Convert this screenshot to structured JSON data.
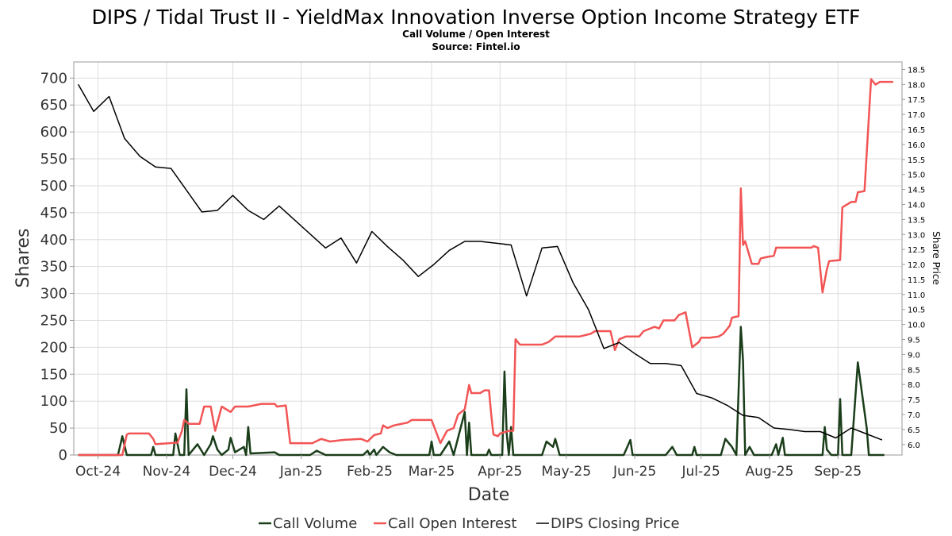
{
  "chart_data": {
    "type": "line",
    "title": "DIPS / Tidal Trust II - YieldMax Innovation Inverse Option Income Strategy ETF",
    "subtitle_lines": [
      "Call Volume / Open Interest",
      "Source: Fintel.io"
    ],
    "xlabel": "Date",
    "ylabel": "Shares",
    "y2label": "Share Price",
    "ylim": [
      0,
      730
    ],
    "y2lim": [
      5.65,
      18.75
    ],
    "y_ticks": [
      "0",
      "50",
      "100",
      "150",
      "200",
      "250",
      "300",
      "350",
      "400",
      "450",
      "500",
      "550",
      "600",
      "650",
      "700"
    ],
    "y2_ticks": [
      "6.0",
      "6.5",
      "7.0",
      "7.5",
      "8.0",
      "8.5",
      "9.0",
      "9.5",
      "10.0",
      "10.5",
      "11.0",
      "11.5",
      "12.0",
      "12.5",
      "13.0",
      "13.5",
      "14.0",
      "14.5",
      "15.0",
      "15.5",
      "16.0",
      "16.5",
      "17.0",
      "17.5",
      "18.0",
      "18.5"
    ],
    "x_range": [
      "2024-09-20",
      "2025-09-30"
    ],
    "x_ticks": [
      {
        "date": "2024-10-01",
        "label": "Oct-24"
      },
      {
        "date": "2024-11-01",
        "label": "Nov-24"
      },
      {
        "date": "2024-12-01",
        "label": "Dec-24"
      },
      {
        "date": "2025-01-01",
        "label": "Jan-25"
      },
      {
        "date": "2025-02-01",
        "label": "Feb-25"
      },
      {
        "date": "2025-03-01",
        "label": "Mar-25"
      },
      {
        "date": "2025-04-01",
        "label": "Apr-25"
      },
      {
        "date": "2025-05-01",
        "label": "May-25"
      },
      {
        "date": "2025-06-01",
        "label": "Jun-25"
      },
      {
        "date": "2025-07-01",
        "label": "Jul-25"
      },
      {
        "date": "2025-08-01",
        "label": "Aug-25"
      },
      {
        "date": "2025-09-01",
        "label": "Sep-25"
      }
    ],
    "grid": true,
    "legend_position": "bottom",
    "series": [
      {
        "name": "Call Volume",
        "axis": "left",
        "color": "#1a3d1a",
        "points": [
          [
            "2024-09-22",
            0
          ],
          [
            "2024-10-01",
            0
          ],
          [
            "2024-10-10",
            0
          ],
          [
            "2024-10-12",
            35
          ],
          [
            "2024-10-14",
            0
          ],
          [
            "2024-10-25",
            0
          ],
          [
            "2024-10-26",
            15
          ],
          [
            "2024-10-27",
            0
          ],
          [
            "2024-11-04",
            0
          ],
          [
            "2024-11-05",
            40
          ],
          [
            "2024-11-07",
            0
          ],
          [
            "2024-11-09",
            0
          ],
          [
            "2024-11-10",
            122
          ],
          [
            "2024-11-11",
            0
          ],
          [
            "2024-11-15",
            20
          ],
          [
            "2024-11-18",
            0
          ],
          [
            "2024-11-21",
            20
          ],
          [
            "2024-11-22",
            35
          ],
          [
            "2024-11-24",
            10
          ],
          [
            "2024-11-26",
            0
          ],
          [
            "2024-11-29",
            10
          ],
          [
            "2024-11-30",
            32
          ],
          [
            "2024-12-02",
            5
          ],
          [
            "2024-12-06",
            15
          ],
          [
            "2024-12-07",
            0
          ],
          [
            "2024-12-08",
            52
          ],
          [
            "2024-12-09",
            3
          ],
          [
            "2024-12-20",
            5
          ],
          [
            "2024-12-22",
            0
          ],
          [
            "2025-01-05",
            0
          ],
          [
            "2025-01-08",
            8
          ],
          [
            "2025-01-12",
            0
          ],
          [
            "2025-01-29",
            0
          ],
          [
            "2025-01-31",
            8
          ],
          [
            "2025-02-01",
            0
          ],
          [
            "2025-02-03",
            10
          ],
          [
            "2025-02-04",
            0
          ],
          [
            "2025-02-07",
            15
          ],
          [
            "2025-02-10",
            5
          ],
          [
            "2025-02-13",
            0
          ],
          [
            "2025-02-28",
            0
          ],
          [
            "2025-03-01",
            25
          ],
          [
            "2025-03-02",
            0
          ],
          [
            "2025-03-05",
            0
          ],
          [
            "2025-03-09",
            25
          ],
          [
            "2025-03-11",
            0
          ],
          [
            "2025-03-16",
            80
          ],
          [
            "2025-03-17",
            0
          ],
          [
            "2025-03-18",
            60
          ],
          [
            "2025-03-19",
            0
          ],
          [
            "2025-03-26",
            0
          ],
          [
            "2025-03-27",
            10
          ],
          [
            "2025-03-28",
            0
          ],
          [
            "2025-04-02",
            0
          ],
          [
            "2025-04-03",
            155
          ],
          [
            "2025-04-04",
            40
          ],
          [
            "2025-04-05",
            0
          ],
          [
            "2025-04-06",
            52
          ],
          [
            "2025-04-07",
            0
          ],
          [
            "2025-04-20",
            0
          ],
          [
            "2025-04-22",
            25
          ],
          [
            "2025-04-25",
            15
          ],
          [
            "2025-04-26",
            30
          ],
          [
            "2025-04-28",
            0
          ],
          [
            "2025-05-27",
            0
          ],
          [
            "2025-05-30",
            28
          ],
          [
            "2025-05-31",
            0
          ],
          [
            "2025-06-15",
            0
          ],
          [
            "2025-06-18",
            15
          ],
          [
            "2025-06-20",
            0
          ],
          [
            "2025-06-27",
            0
          ],
          [
            "2025-06-28",
            15
          ],
          [
            "2025-06-29",
            0
          ],
          [
            "2025-07-10",
            0
          ],
          [
            "2025-07-12",
            30
          ],
          [
            "2025-07-15",
            15
          ],
          [
            "2025-07-17",
            0
          ],
          [
            "2025-07-19",
            238
          ],
          [
            "2025-07-20",
            175
          ],
          [
            "2025-07-21",
            0
          ],
          [
            "2025-07-23",
            15
          ],
          [
            "2025-07-25",
            0
          ],
          [
            "2025-08-02",
            0
          ],
          [
            "2025-08-04",
            20
          ],
          [
            "2025-08-05",
            0
          ],
          [
            "2025-08-07",
            32
          ],
          [
            "2025-08-08",
            0
          ],
          [
            "2025-08-25",
            0
          ],
          [
            "2025-08-26",
            52
          ],
          [
            "2025-08-27",
            10
          ],
          [
            "2025-08-29",
            0
          ],
          [
            "2025-09-01",
            0
          ],
          [
            "2025-09-02",
            104
          ],
          [
            "2025-09-03",
            0
          ],
          [
            "2025-09-07",
            0
          ],
          [
            "2025-09-10",
            172
          ],
          [
            "2025-09-14",
            50
          ],
          [
            "2025-09-15",
            0
          ],
          [
            "2025-09-22",
            0
          ]
        ]
      },
      {
        "name": "Call Open Interest",
        "axis": "left",
        "color": "#f25555",
        "points": [
          [
            "2024-09-22",
            0
          ],
          [
            "2024-10-12",
            0
          ],
          [
            "2024-10-14",
            38
          ],
          [
            "2024-10-15",
            40
          ],
          [
            "2024-10-24",
            40
          ],
          [
            "2024-10-26",
            30
          ],
          [
            "2024-10-27",
            20
          ],
          [
            "2024-11-06",
            23
          ],
          [
            "2024-11-08",
            45
          ],
          [
            "2024-11-09",
            65
          ],
          [
            "2024-11-11",
            58
          ],
          [
            "2024-11-16",
            58
          ],
          [
            "2024-11-18",
            90
          ],
          [
            "2024-11-21",
            90
          ],
          [
            "2024-11-23",
            45
          ],
          [
            "2024-11-26",
            90
          ],
          [
            "2024-11-30",
            80
          ],
          [
            "2024-12-02",
            90
          ],
          [
            "2024-12-08",
            90
          ],
          [
            "2024-12-14",
            95
          ],
          [
            "2024-12-20",
            95
          ],
          [
            "2024-12-21",
            90
          ],
          [
            "2024-12-25",
            92
          ],
          [
            "2024-12-27",
            22
          ],
          [
            "2025-01-06",
            22
          ],
          [
            "2025-01-10",
            30
          ],
          [
            "2025-01-14",
            25
          ],
          [
            "2025-01-20",
            28
          ],
          [
            "2025-01-28",
            30
          ],
          [
            "2025-01-31",
            25
          ],
          [
            "2025-02-03",
            37
          ],
          [
            "2025-02-06",
            40
          ],
          [
            "2025-02-07",
            55
          ],
          [
            "2025-02-09",
            50
          ],
          [
            "2025-02-12",
            55
          ],
          [
            "2025-02-18",
            60
          ],
          [
            "2025-02-20",
            65
          ],
          [
            "2025-03-01",
            65
          ],
          [
            "2025-03-05",
            22
          ],
          [
            "2025-03-08",
            45
          ],
          [
            "2025-03-11",
            50
          ],
          [
            "2025-03-13",
            75
          ],
          [
            "2025-03-16",
            85
          ],
          [
            "2025-03-18",
            130
          ],
          [
            "2025-03-19",
            115
          ],
          [
            "2025-03-23",
            115
          ],
          [
            "2025-03-25",
            120
          ],
          [
            "2025-03-27",
            120
          ],
          [
            "2025-03-28",
            75
          ],
          [
            "2025-03-29",
            38
          ],
          [
            "2025-03-31",
            35
          ],
          [
            "2025-04-01",
            40
          ],
          [
            "2025-04-05",
            45
          ],
          [
            "2025-04-07",
            45
          ],
          [
            "2025-04-08",
            215
          ],
          [
            "2025-04-10",
            205
          ],
          [
            "2025-04-20",
            205
          ],
          [
            "2025-04-23",
            210
          ],
          [
            "2025-04-26",
            220
          ],
          [
            "2025-05-07",
            220
          ],
          [
            "2025-05-12",
            225
          ],
          [
            "2025-05-14",
            230
          ],
          [
            "2025-05-21",
            230
          ],
          [
            "2025-05-23",
            195
          ],
          [
            "2025-05-25",
            215
          ],
          [
            "2025-05-28",
            220
          ],
          [
            "2025-06-03",
            220
          ],
          [
            "2025-06-05",
            230
          ],
          [
            "2025-06-10",
            238
          ],
          [
            "2025-06-12",
            235
          ],
          [
            "2025-06-14",
            250
          ],
          [
            "2025-06-19",
            250
          ],
          [
            "2025-06-21",
            260
          ],
          [
            "2025-06-24",
            265
          ],
          [
            "2025-06-27",
            200
          ],
          [
            "2025-06-30",
            210
          ],
          [
            "2025-07-01",
            218
          ],
          [
            "2025-07-05",
            218
          ],
          [
            "2025-07-09",
            220
          ],
          [
            "2025-07-11",
            225
          ],
          [
            "2025-07-14",
            240
          ],
          [
            "2025-07-15",
            255
          ],
          [
            "2025-07-18",
            258
          ],
          [
            "2025-07-19",
            495
          ],
          [
            "2025-07-20",
            390
          ],
          [
            "2025-07-21",
            397
          ],
          [
            "2025-07-24",
            355
          ],
          [
            "2025-07-27",
            355
          ],
          [
            "2025-07-28",
            365
          ],
          [
            "2025-07-31",
            368
          ],
          [
            "2025-08-03",
            370
          ],
          [
            "2025-08-04",
            385
          ],
          [
            "2025-08-07",
            385
          ],
          [
            "2025-08-10",
            385
          ],
          [
            "2025-08-20",
            385
          ],
          [
            "2025-08-21",
            388
          ],
          [
            "2025-08-23",
            385
          ],
          [
            "2025-08-25",
            302
          ],
          [
            "2025-08-27",
            345
          ],
          [
            "2025-08-28",
            360
          ],
          [
            "2025-09-02",
            362
          ],
          [
            "2025-09-03",
            460
          ],
          [
            "2025-09-07",
            470
          ],
          [
            "2025-09-09",
            470
          ],
          [
            "2025-09-10",
            488
          ],
          [
            "2025-09-13",
            490
          ],
          [
            "2025-09-16",
            698
          ],
          [
            "2025-09-18",
            688
          ],
          [
            "2025-09-20",
            693
          ],
          [
            "2025-09-26",
            693
          ]
        ]
      },
      {
        "name": "DIPS Closing Price",
        "axis": "right",
        "color": "#000000",
        "points": [
          [
            "2024-09-22",
            18.0
          ],
          [
            "2024-09-29",
            17.1
          ],
          [
            "2024-10-06",
            17.6
          ],
          [
            "2024-10-13",
            16.2
          ],
          [
            "2024-10-20",
            15.6
          ],
          [
            "2024-10-27",
            15.25
          ],
          [
            "2024-11-03",
            15.2
          ],
          [
            "2024-11-17",
            13.75
          ],
          [
            "2024-11-24",
            13.8
          ],
          [
            "2024-12-01",
            14.3
          ],
          [
            "2024-12-08",
            13.8
          ],
          [
            "2024-12-15",
            13.5
          ],
          [
            "2024-12-22",
            13.95
          ],
          [
            "2025-01-12",
            12.55
          ],
          [
            "2025-01-19",
            12.88
          ],
          [
            "2025-01-26",
            12.05
          ],
          [
            "2025-02-02",
            13.1
          ],
          [
            "2025-02-09",
            12.6
          ],
          [
            "2025-02-16",
            12.15
          ],
          [
            "2025-02-23",
            11.6
          ],
          [
            "2025-03-02",
            12.0
          ],
          [
            "2025-03-09",
            12.47
          ],
          [
            "2025-03-16",
            12.77
          ],
          [
            "2025-03-23",
            12.77
          ],
          [
            "2025-04-06",
            12.65
          ],
          [
            "2025-04-13",
            10.95
          ],
          [
            "2025-04-20",
            12.55
          ],
          [
            "2025-04-27",
            12.6
          ],
          [
            "2025-05-04",
            11.4
          ],
          [
            "2025-05-11",
            10.5
          ],
          [
            "2025-05-18",
            9.2
          ],
          [
            "2025-05-25",
            9.4
          ],
          [
            "2025-06-01",
            9.03
          ],
          [
            "2025-06-08",
            8.7
          ],
          [
            "2025-06-15",
            8.7
          ],
          [
            "2025-06-22",
            8.63
          ],
          [
            "2025-06-29",
            7.7
          ],
          [
            "2025-07-06",
            7.55
          ],
          [
            "2025-07-13",
            7.3
          ],
          [
            "2025-07-20",
            6.97
          ],
          [
            "2025-07-27",
            6.9
          ],
          [
            "2025-08-03",
            6.55
          ],
          [
            "2025-08-10",
            6.5
          ],
          [
            "2025-08-17",
            6.43
          ],
          [
            "2025-08-24",
            6.43
          ],
          [
            "2025-08-31",
            6.22
          ],
          [
            "2025-09-07",
            6.55
          ],
          [
            "2025-09-14",
            6.35
          ],
          [
            "2025-09-21",
            6.15
          ]
        ]
      }
    ]
  }
}
